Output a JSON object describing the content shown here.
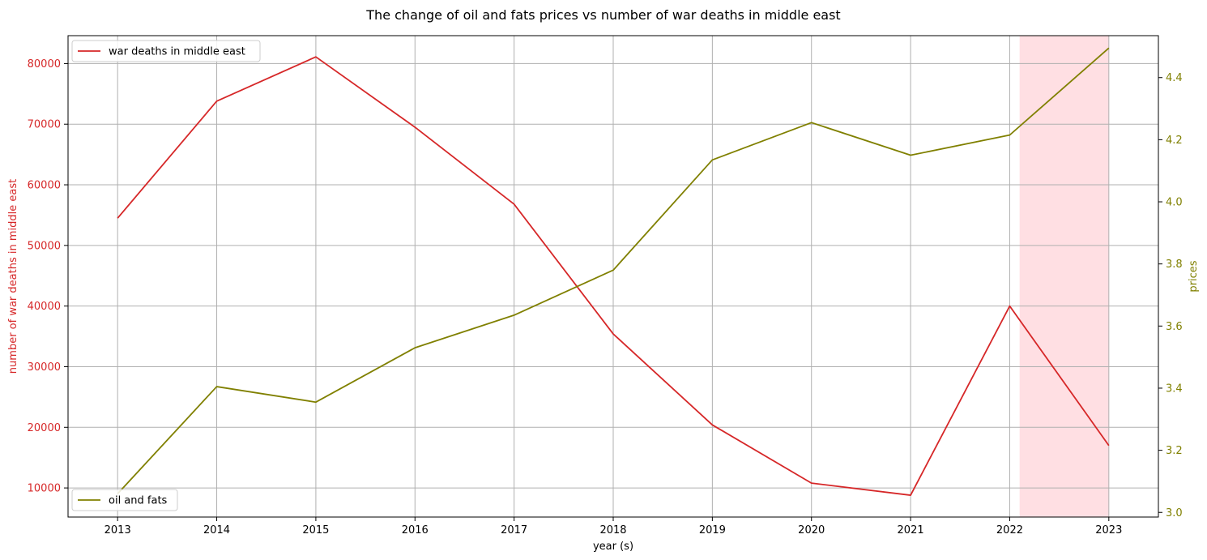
{
  "chart_data": {
    "type": "line",
    "title": "The change of oil and fats prices vs number of war deaths in middle east",
    "xlabel": "year (s)",
    "ylabel_left": "number of war deaths in middle east",
    "ylabel_right": "prices",
    "x": [
      2013,
      2014,
      2015,
      2016,
      2017,
      2018,
      2019,
      2020,
      2021,
      2022,
      2023
    ],
    "xlim": [
      2012.5,
      2023.5
    ],
    "ylim_left": [
      5200,
      84600
    ],
    "ylim_right": [
      2.985,
      4.535
    ],
    "yticks_left": [
      10000,
      20000,
      30000,
      40000,
      50000,
      60000,
      70000,
      80000
    ],
    "yticks_right": [
      3.0,
      3.2,
      3.4,
      3.6,
      3.8,
      4.0,
      4.2,
      4.4
    ],
    "ytick_labels_right": [
      "3.0",
      "3.2",
      "3.4",
      "3.6",
      "3.8",
      "4.0",
      "4.2",
      "4.4"
    ],
    "grid": true,
    "shaded_region": {
      "x_start": 2022.1,
      "x_end": 2023.0,
      "color": "#ffdfe3"
    },
    "series": [
      {
        "name": "war deaths in middle east",
        "axis": "left",
        "color": "#d62728",
        "values": [
          54500,
          73800,
          81100,
          69500,
          56800,
          35400,
          20400,
          10800,
          8800,
          40000,
          17000
        ]
      },
      {
        "name": "oil and fats",
        "axis": "right",
        "color": "#808000",
        "values": [
          3.06,
          3.405,
          3.355,
          3.53,
          3.635,
          3.78,
          4.135,
          4.255,
          4.15,
          4.215,
          4.495
        ]
      }
    ],
    "legend_left": {
      "label": "war deaths in middle east",
      "placement": "upper-left"
    },
    "legend_right": {
      "label": "oil and fats",
      "placement": "lower-left"
    }
  }
}
